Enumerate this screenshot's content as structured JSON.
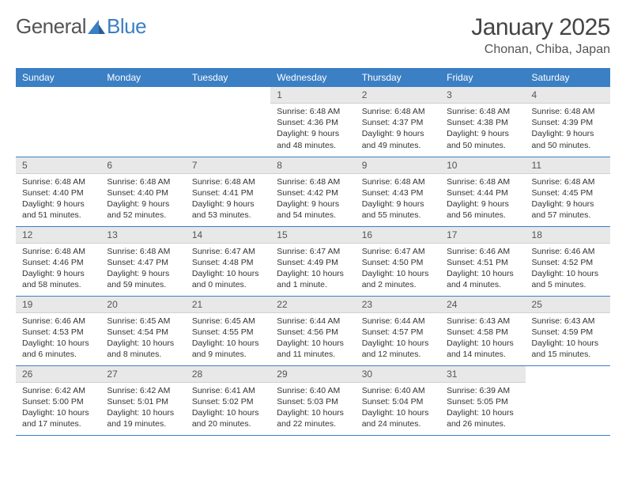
{
  "logo": {
    "text_a": "General",
    "text_b": "Blue"
  },
  "title": "January 2025",
  "location": "Chonan, Chiba, Japan",
  "colors": {
    "header_bg": "#3b7fc4",
    "header_text": "#ffffff",
    "daynum_bg": "#e8e8e8",
    "border": "#3b7fc4",
    "text": "#333333",
    "logo_gray": "#555555",
    "logo_blue": "#3b7fc4"
  },
  "weekdays": [
    "Sunday",
    "Monday",
    "Tuesday",
    "Wednesday",
    "Thursday",
    "Friday",
    "Saturday"
  ],
  "weeks": [
    [
      null,
      null,
      null,
      {
        "n": "1",
        "sunrise": "6:48 AM",
        "sunset": "4:36 PM",
        "daylight": "9 hours and 48 minutes."
      },
      {
        "n": "2",
        "sunrise": "6:48 AM",
        "sunset": "4:37 PM",
        "daylight": "9 hours and 49 minutes."
      },
      {
        "n": "3",
        "sunrise": "6:48 AM",
        "sunset": "4:38 PM",
        "daylight": "9 hours and 50 minutes."
      },
      {
        "n": "4",
        "sunrise": "6:48 AM",
        "sunset": "4:39 PM",
        "daylight": "9 hours and 50 minutes."
      }
    ],
    [
      {
        "n": "5",
        "sunrise": "6:48 AM",
        "sunset": "4:40 PM",
        "daylight": "9 hours and 51 minutes."
      },
      {
        "n": "6",
        "sunrise": "6:48 AM",
        "sunset": "4:40 PM",
        "daylight": "9 hours and 52 minutes."
      },
      {
        "n": "7",
        "sunrise": "6:48 AM",
        "sunset": "4:41 PM",
        "daylight": "9 hours and 53 minutes."
      },
      {
        "n": "8",
        "sunrise": "6:48 AM",
        "sunset": "4:42 PM",
        "daylight": "9 hours and 54 minutes."
      },
      {
        "n": "9",
        "sunrise": "6:48 AM",
        "sunset": "4:43 PM",
        "daylight": "9 hours and 55 minutes."
      },
      {
        "n": "10",
        "sunrise": "6:48 AM",
        "sunset": "4:44 PM",
        "daylight": "9 hours and 56 minutes."
      },
      {
        "n": "11",
        "sunrise": "6:48 AM",
        "sunset": "4:45 PM",
        "daylight": "9 hours and 57 minutes."
      }
    ],
    [
      {
        "n": "12",
        "sunrise": "6:48 AM",
        "sunset": "4:46 PM",
        "daylight": "9 hours and 58 minutes."
      },
      {
        "n": "13",
        "sunrise": "6:48 AM",
        "sunset": "4:47 PM",
        "daylight": "9 hours and 59 minutes."
      },
      {
        "n": "14",
        "sunrise": "6:47 AM",
        "sunset": "4:48 PM",
        "daylight": "10 hours and 0 minutes."
      },
      {
        "n": "15",
        "sunrise": "6:47 AM",
        "sunset": "4:49 PM",
        "daylight": "10 hours and 1 minute."
      },
      {
        "n": "16",
        "sunrise": "6:47 AM",
        "sunset": "4:50 PM",
        "daylight": "10 hours and 2 minutes."
      },
      {
        "n": "17",
        "sunrise": "6:46 AM",
        "sunset": "4:51 PM",
        "daylight": "10 hours and 4 minutes."
      },
      {
        "n": "18",
        "sunrise": "6:46 AM",
        "sunset": "4:52 PM",
        "daylight": "10 hours and 5 minutes."
      }
    ],
    [
      {
        "n": "19",
        "sunrise": "6:46 AM",
        "sunset": "4:53 PM",
        "daylight": "10 hours and 6 minutes."
      },
      {
        "n": "20",
        "sunrise": "6:45 AM",
        "sunset": "4:54 PM",
        "daylight": "10 hours and 8 minutes."
      },
      {
        "n": "21",
        "sunrise": "6:45 AM",
        "sunset": "4:55 PM",
        "daylight": "10 hours and 9 minutes."
      },
      {
        "n": "22",
        "sunrise": "6:44 AM",
        "sunset": "4:56 PM",
        "daylight": "10 hours and 11 minutes."
      },
      {
        "n": "23",
        "sunrise": "6:44 AM",
        "sunset": "4:57 PM",
        "daylight": "10 hours and 12 minutes."
      },
      {
        "n": "24",
        "sunrise": "6:43 AM",
        "sunset": "4:58 PM",
        "daylight": "10 hours and 14 minutes."
      },
      {
        "n": "25",
        "sunrise": "6:43 AM",
        "sunset": "4:59 PM",
        "daylight": "10 hours and 15 minutes."
      }
    ],
    [
      {
        "n": "26",
        "sunrise": "6:42 AM",
        "sunset": "5:00 PM",
        "daylight": "10 hours and 17 minutes."
      },
      {
        "n": "27",
        "sunrise": "6:42 AM",
        "sunset": "5:01 PM",
        "daylight": "10 hours and 19 minutes."
      },
      {
        "n": "28",
        "sunrise": "6:41 AM",
        "sunset": "5:02 PM",
        "daylight": "10 hours and 20 minutes."
      },
      {
        "n": "29",
        "sunrise": "6:40 AM",
        "sunset": "5:03 PM",
        "daylight": "10 hours and 22 minutes."
      },
      {
        "n": "30",
        "sunrise": "6:40 AM",
        "sunset": "5:04 PM",
        "daylight": "10 hours and 24 minutes."
      },
      {
        "n": "31",
        "sunrise": "6:39 AM",
        "sunset": "5:05 PM",
        "daylight": "10 hours and 26 minutes."
      },
      null
    ]
  ],
  "labels": {
    "sunrise": "Sunrise: ",
    "sunset": "Sunset: ",
    "daylight": "Daylight: "
  }
}
